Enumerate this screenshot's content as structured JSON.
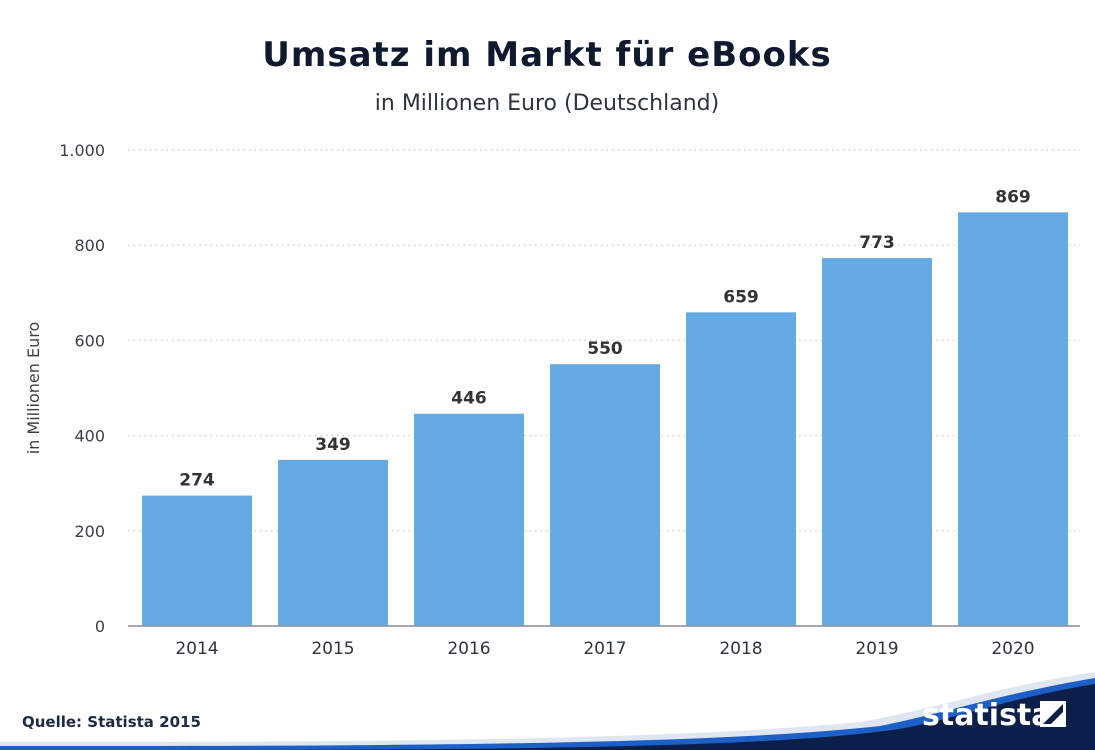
{
  "chart_data": {
    "type": "bar",
    "title": "Umsatz im Markt für eBooks",
    "subtitle": "in Millionen Euro (Deutschland)",
    "ylabel": "in Millionen Euro",
    "xlabel": "",
    "categories": [
      "2014",
      "2015",
      "2016",
      "2017",
      "2018",
      "2019",
      "2020"
    ],
    "values": [
      274,
      349,
      446,
      550,
      659,
      773,
      869
    ],
    "value_labels": [
      "274",
      "349",
      "446",
      "550",
      "659",
      "773",
      "869"
    ],
    "ylim": [
      0,
      1000
    ],
    "yticks": [
      0,
      200,
      400,
      600,
      800,
      1000
    ],
    "ytick_labels": [
      "0",
      "200",
      "400",
      "600",
      "800",
      "1.000"
    ],
    "grid": true,
    "bar_color": "#66aae4"
  },
  "footer": {
    "source": "Quelle: Statista 2015",
    "logo": "statista"
  },
  "colors": {
    "footer_dark": "#0b1f4a",
    "footer_blue": "#1b5fc7",
    "footer_light": "#dfe6f1"
  }
}
